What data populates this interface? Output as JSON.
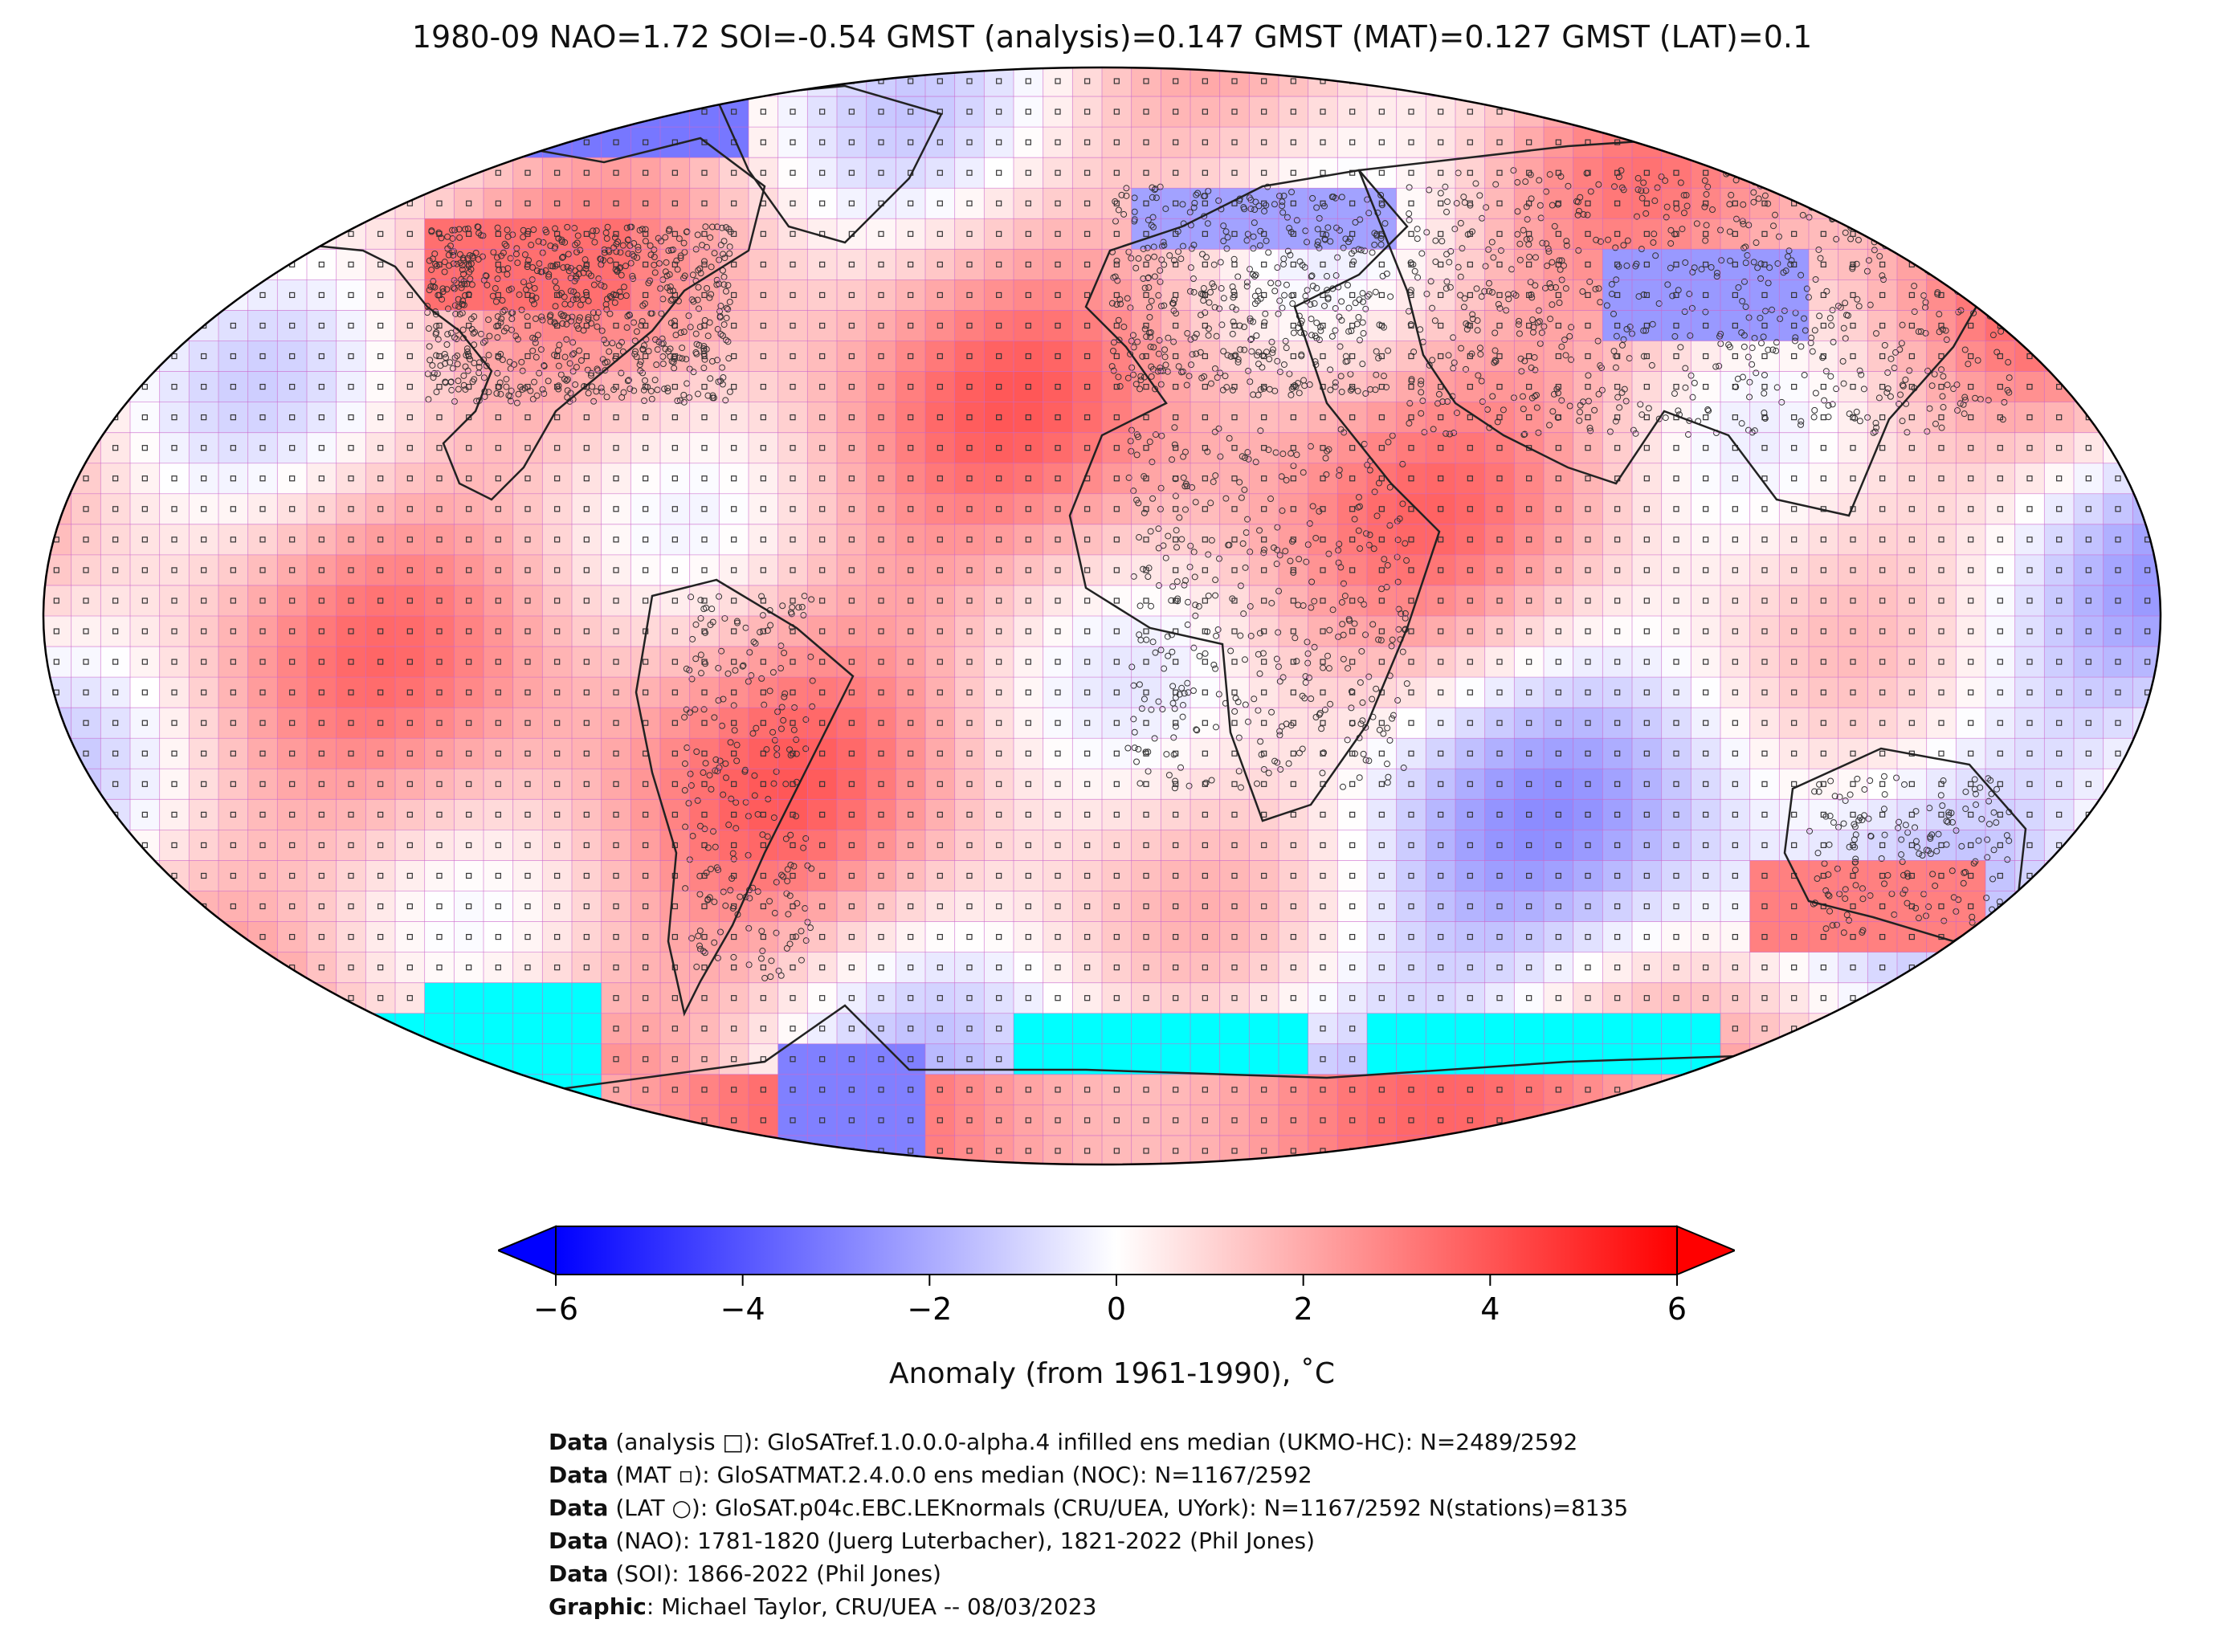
{
  "title": "1980-09 NAO=1.72 SOI=-0.54 GMST (analysis)=0.147 GMST (MAT)=0.127 GMST (LAT)=0.1",
  "colorbar": {
    "label": "Anomaly (from 1961-1990), ˚C",
    "ticks": [
      "−6",
      "−4",
      "−2",
      "0",
      "2",
      "4",
      "6"
    ],
    "min": -6,
    "max": 6,
    "colors": [
      "#0000ff",
      "#ffffff",
      "#ff0000"
    ]
  },
  "credits": [
    {
      "bold": "Data",
      "text": " (analysis □): GloSATref.1.0.0.0-alpha.4 infilled ens median (UKMO-HC): N=2489/2592"
    },
    {
      "bold": "Data",
      "text": " (MAT ▫): GloSATMAT.2.4.0.0 ens median (NOC): N=1167/2592"
    },
    {
      "bold": "Data",
      "text": " (LAT ○): GloSAT.p04c.EBC.LEKnormals (CRU/UEA, UYork): N=1167/2592 N(stations)=8135"
    },
    {
      "bold": "Data",
      "text": " (NAO): 1781-1820 (Juerg Luterbacher), 1821-2022 (Phil Jones)"
    },
    {
      "bold": "Data",
      "text": " (SOI): 1866-2022 (Phil Jones)"
    },
    {
      "bold": "Graphic",
      "text": ": Michael Taylor, CRU/UEA -- 08/03/2023"
    }
  ],
  "map": {
    "projection": "Robinson",
    "grid_resolution_deg": 5,
    "missing_color": "#00ffff",
    "gridline_color": "#cc66cc"
  }
}
